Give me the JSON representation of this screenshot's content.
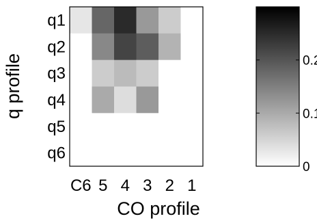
{
  "chart_data": {
    "type": "heatmap",
    "xlabel": "CO profile",
    "ylabel": "q profile",
    "x_categories": [
      "C6",
      "5",
      "4",
      "3",
      "2",
      "1"
    ],
    "y_categories": [
      "q1",
      "q2",
      "q3",
      "q4",
      "q5",
      "q6"
    ],
    "values": [
      [
        0.03,
        0.18,
        0.25,
        0.12,
        0.06,
        0.0
      ],
      [
        0.0,
        0.14,
        0.22,
        0.19,
        0.09,
        0.0
      ],
      [
        0.0,
        0.06,
        0.08,
        0.06,
        0.0,
        0.0
      ],
      [
        0.0,
        0.1,
        0.04,
        0.12,
        0.0,
        0.0
      ],
      [
        0.0,
        0.0,
        0.0,
        0.0,
        0.0,
        0.0
      ],
      [
        0.0,
        0.0,
        0.0,
        0.0,
        0.0,
        0.0
      ]
    ],
    "colorbar": {
      "range": [
        0,
        0.3
      ],
      "ticks": [
        0,
        0.1,
        0.2
      ],
      "tick_labels": [
        "0",
        "0.1",
        "0.2"
      ],
      "colormap": "gray-reversed"
    },
    "grid": false,
    "colors": {
      "low": "#ffffff",
      "high": "#000000",
      "axis": "#000000"
    }
  }
}
